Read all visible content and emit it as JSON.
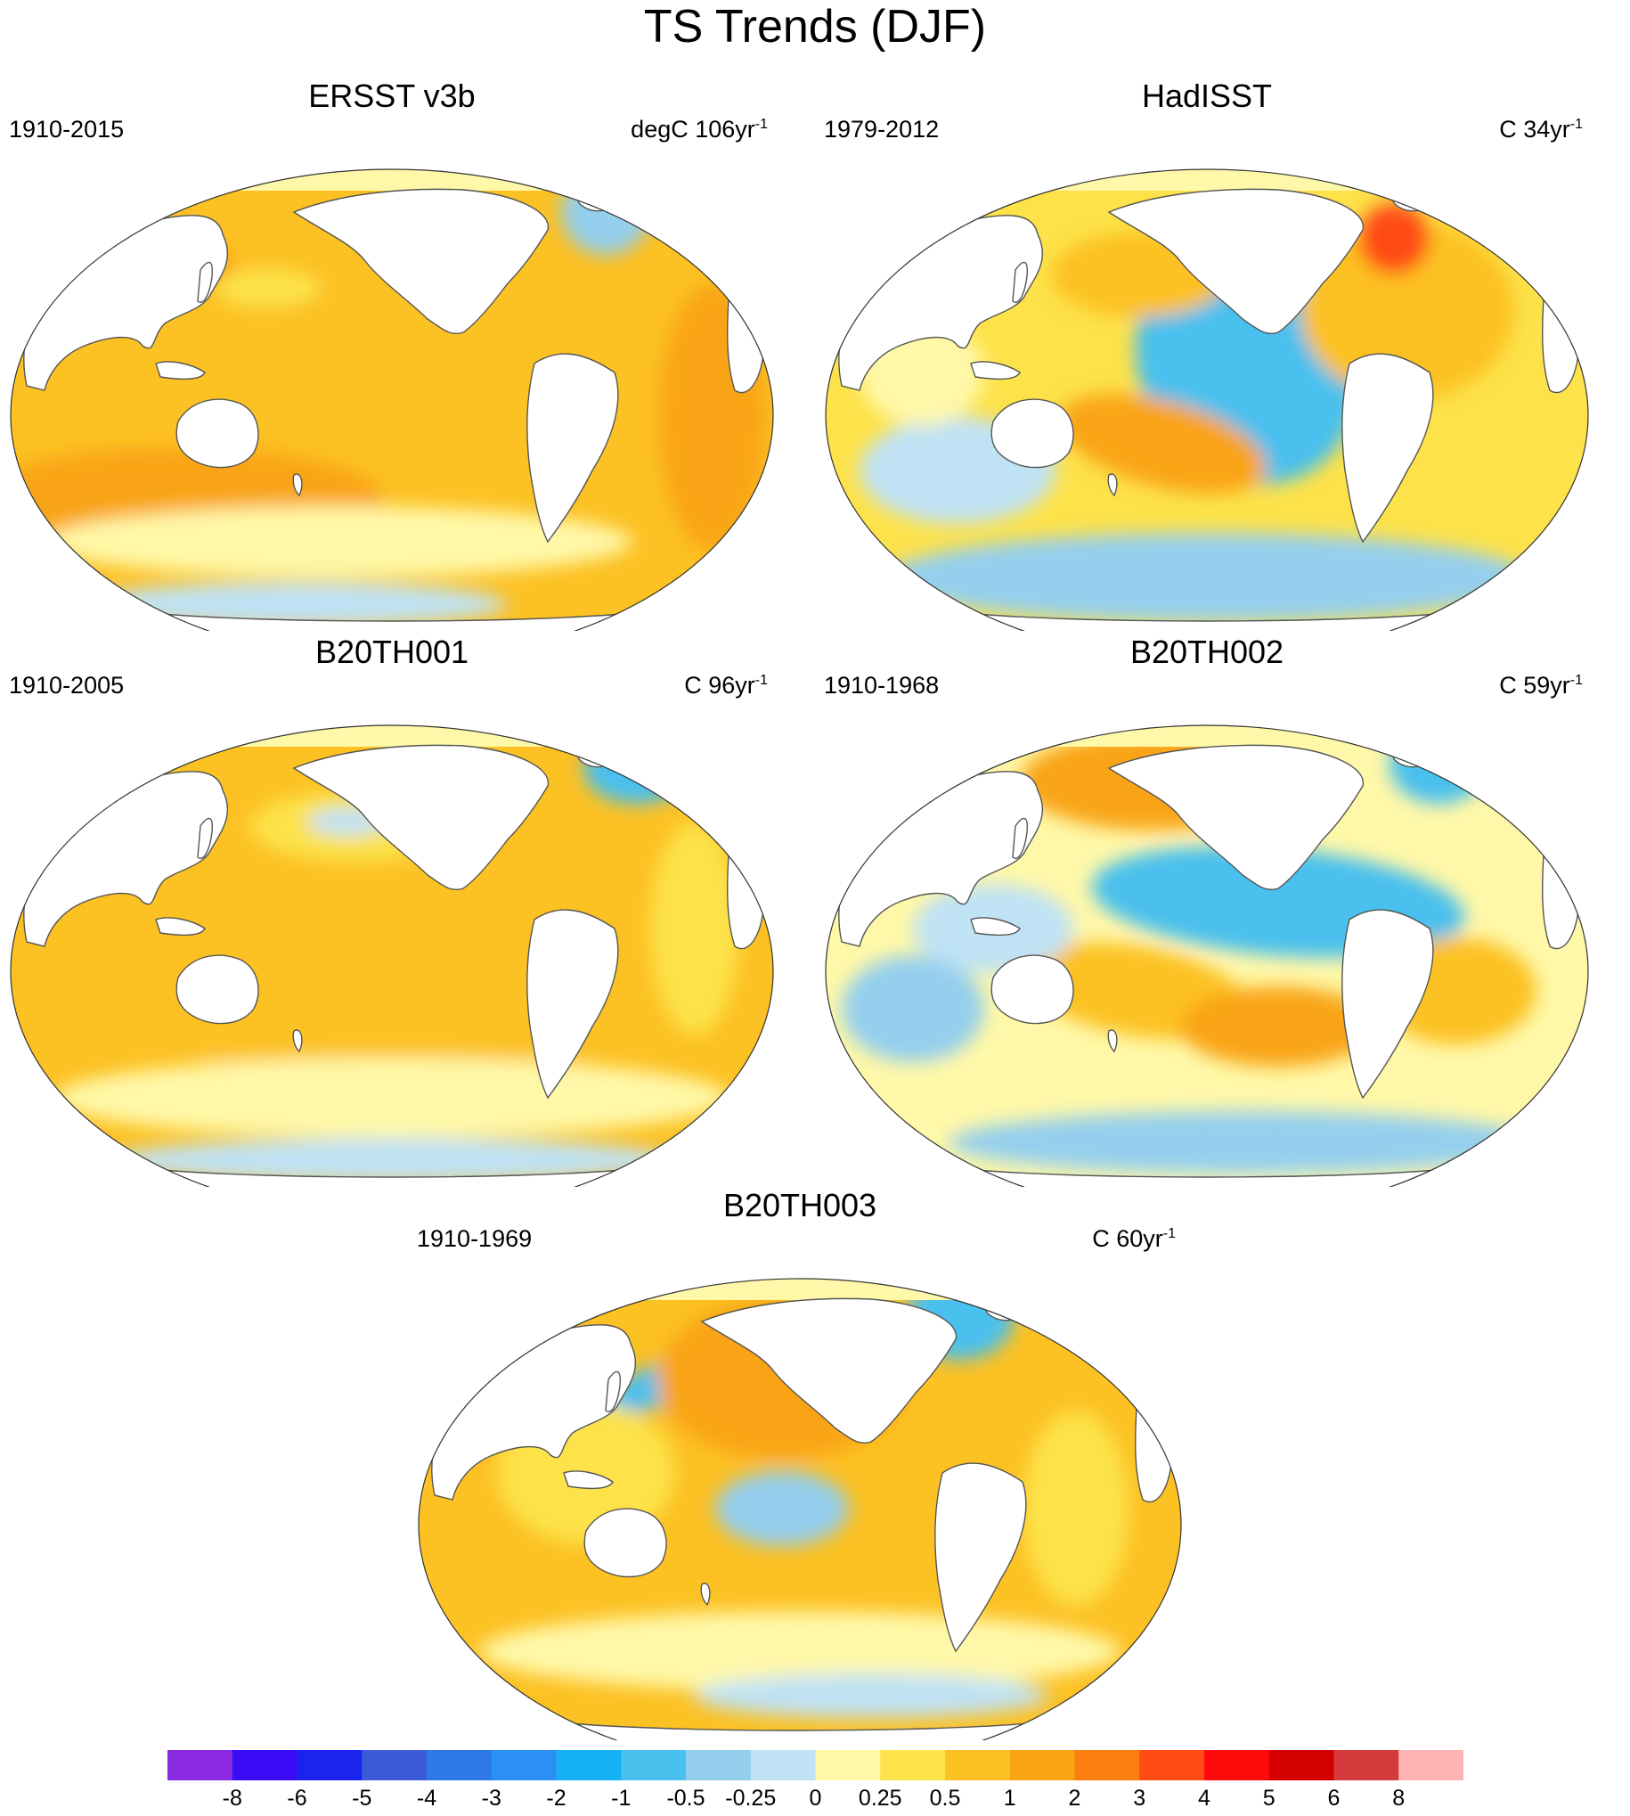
{
  "title": "TS Trends (DJF)",
  "panels": [
    {
      "title": "ERSST v3b",
      "period": "1910-2015",
      "units_prefix": "degC 106yr",
      "units_exp": "-1"
    },
    {
      "title": "HadISST",
      "period": "1979-2012",
      "units_prefix": "C 34yr",
      "units_exp": "-1"
    },
    {
      "title": "B20TH001",
      "period": "1910-2005",
      "units_prefix": "C 96yr",
      "units_exp": "-1"
    },
    {
      "title": "B20TH002",
      "period": "1910-1968",
      "units_prefix": "C 59yr",
      "units_exp": "-1"
    },
    {
      "title": "B20TH003",
      "period": "1910-1969",
      "units_prefix": "C 60yr",
      "units_exp": "-1"
    }
  ],
  "colorbar": {
    "labels": [
      "-8",
      "-6",
      "-5",
      "-4",
      "-3",
      "-2",
      "-1",
      "-0.5",
      "-0.25",
      "0",
      "0.25",
      "0.5",
      "1",
      "2",
      "3",
      "4",
      "5",
      "6",
      "8"
    ],
    "colors": [
      "#8a2be2",
      "#3a0cf5",
      "#1a24ee",
      "#3a5ad8",
      "#2f78e8",
      "#2a90f5",
      "#14b2f5",
      "#4ac0ee",
      "#94cfee",
      "#bfe2f5",
      "#fff8a8",
      "#fde24a",
      "#fcc123",
      "#f9a412",
      "#fb7f10",
      "#ff4b14",
      "#ff0a0a",
      "#d40000",
      "#d63b3b",
      "#ffb4b4"
    ]
  },
  "map_palette": {
    "land": "#ffffff",
    "coast": "#555555",
    "warm_1": "#fff8a8",
    "warm_2": "#fde24a",
    "warm_3": "#fcc123",
    "warm_4": "#f9a412",
    "cool_1": "#bfe2f5",
    "cool_2": "#94cfee",
    "cool_3": "#4ac0ee",
    "hot": "#ff4b14"
  }
}
